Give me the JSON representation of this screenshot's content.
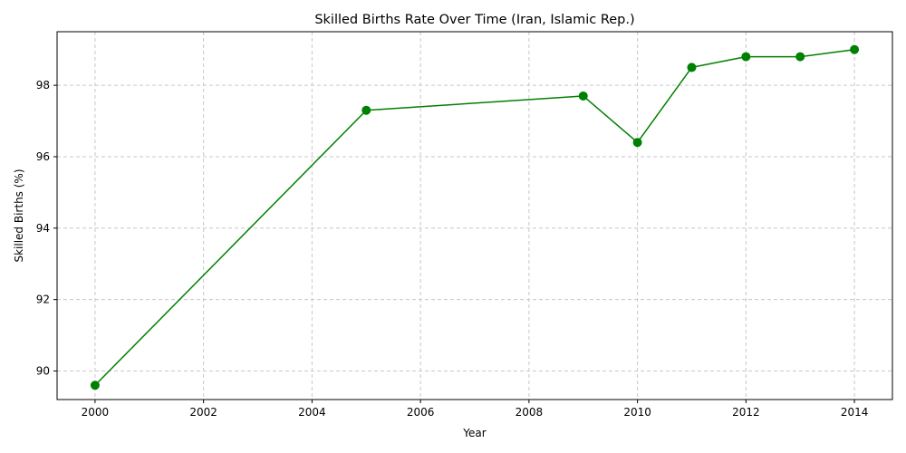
{
  "chart_data": {
    "type": "line",
    "title": "Skilled Births Rate Over Time (Iran, Islamic Rep.)",
    "xlabel": "Year",
    "ylabel": "Skilled Births (%)",
    "xlim": [
      1999.3,
      2014.7
    ],
    "ylim": [
      89.2,
      99.5
    ],
    "xticks": [
      2000,
      2002,
      2004,
      2006,
      2008,
      2010,
      2012,
      2014
    ],
    "yticks": [
      90,
      92,
      94,
      96,
      98
    ],
    "grid": true,
    "grid_style": "dashed",
    "series": [
      {
        "color": "#008000",
        "marker": "circle",
        "x": [
          2000,
          2005,
          2009,
          2010,
          2011,
          2012,
          2013,
          2014
        ],
        "y": [
          89.6,
          97.3,
          97.7,
          96.4,
          98.5,
          98.8,
          98.8,
          99.0
        ]
      }
    ]
  }
}
